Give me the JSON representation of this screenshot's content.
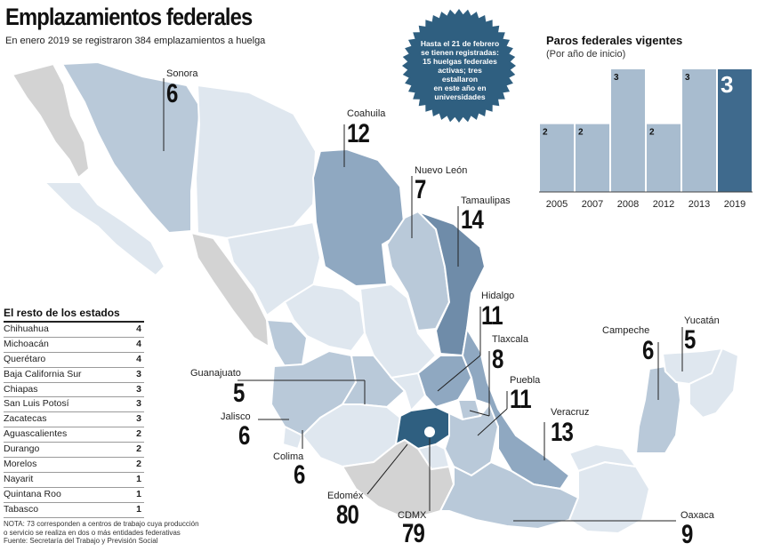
{
  "title": "Emplazamientos federales",
  "subtitle": "En enero 2019 se registraron 384 emplazamientos a huelga",
  "badge": {
    "lines": [
      "Hasta el 21 de febrero",
      "se tienen registradas:",
      "15 huelgas federales",
      "activas; tres estallaron",
      "en este año en",
      "universidades"
    ],
    "color": "#2f5f80"
  },
  "chart_data": {
    "type": "bar",
    "title": "Paros federales vigentes",
    "subtitle": "(Por año de inicio)",
    "categories": [
      "2005",
      "2007",
      "2008",
      "2012",
      "2013",
      "2019"
    ],
    "values": [
      2,
      2,
      3,
      2,
      3,
      3
    ],
    "ylim": [
      0,
      3
    ],
    "colors": {
      "bar": "#a8bccf",
      "highlight": "#3f6a8d"
    },
    "highlight_index": 5
  },
  "states": [
    {
      "name": "Sonora",
      "value": "6"
    },
    {
      "name": "Coahuila",
      "value": "12"
    },
    {
      "name": "Nuevo León",
      "value": "7"
    },
    {
      "name": "Tamaulipas",
      "value": "14"
    },
    {
      "name": "Hidalgo",
      "value": "11"
    },
    {
      "name": "Tlaxcala",
      "value": "8"
    },
    {
      "name": "Puebla",
      "value": "11"
    },
    {
      "name": "Veracruz",
      "value": "13"
    },
    {
      "name": "Campeche",
      "value": "6"
    },
    {
      "name": "Yucatán",
      "value": "5"
    },
    {
      "name": "Guanajuato",
      "value": "5"
    },
    {
      "name": "Jalisco",
      "value": "6"
    },
    {
      "name": "Colima",
      "value": "6"
    },
    {
      "name": "Edoméx",
      "value": "80"
    },
    {
      "name": "CDMX",
      "value": "79"
    },
    {
      "name": "Oaxaca",
      "value": "9"
    }
  ],
  "rest": {
    "title": "El resto de los estados",
    "rows": [
      {
        "name": "Chihuahua",
        "value": "4"
      },
      {
        "name": "Michoacán",
        "value": "4"
      },
      {
        "name": "Querétaro",
        "value": "4"
      },
      {
        "name": "Baja California Sur",
        "value": "3"
      },
      {
        "name": "Chiapas",
        "value": "3"
      },
      {
        "name": "San Luis Potosí",
        "value": "3"
      },
      {
        "name": "Zacatecas",
        "value": "3"
      },
      {
        "name": "Aguascalientes",
        "value": "2"
      },
      {
        "name": "Durango",
        "value": "2"
      },
      {
        "name": "Morelos",
        "value": "2"
      },
      {
        "name": "Nayarit",
        "value": "1"
      },
      {
        "name": "Quintana Roo",
        "value": "1"
      },
      {
        "name": "Tabasco",
        "value": "1"
      }
    ]
  },
  "note": {
    "line1": "NOTA: 73 corresponden a centros de trabajo cuya producción",
    "line2": "o servicio se realiza en dos o más entidades federativas",
    "line3": "Fuente: Secretaría del Trabajo y Previsión Social"
  },
  "colors": {
    "light": "#dfe7ef",
    "mid": "#b9c9d9",
    "strong": "#8fa8c1",
    "dark": "#6f8ca9",
    "darkest": "#2f5f80",
    "gray": "#d3d3d3"
  }
}
